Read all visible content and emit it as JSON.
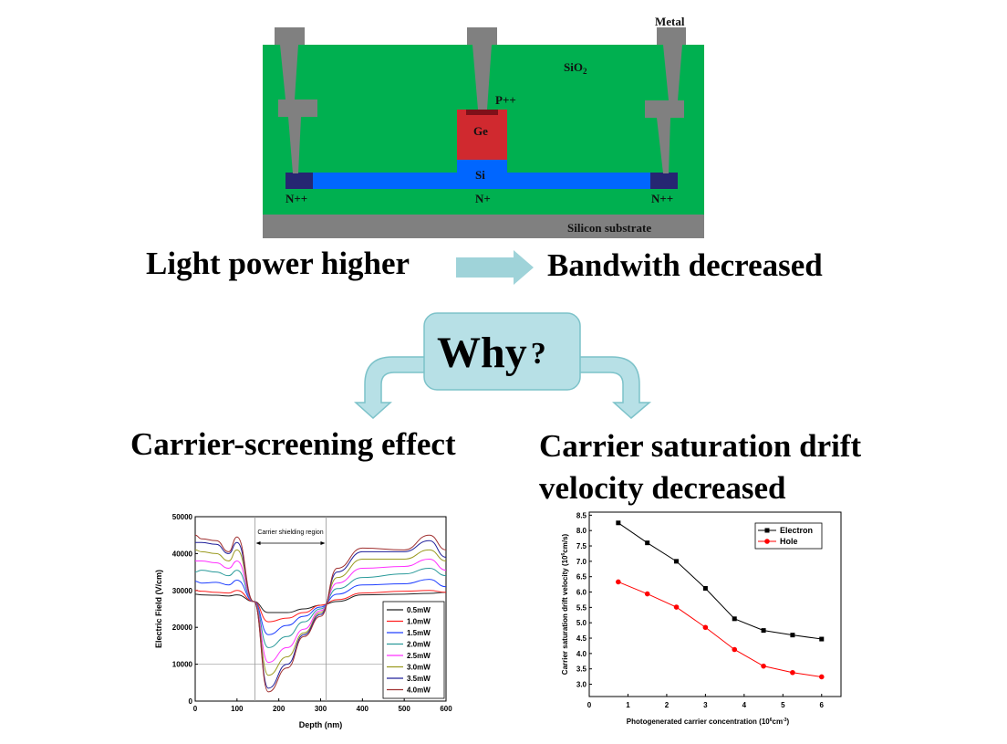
{
  "device": {
    "metal_label": "Metal",
    "sio2_label": "SiO",
    "sio2_sub": "2",
    "p_label": "P++",
    "ge_label": "Ge",
    "si_label": "Si",
    "n_left_label": "N++",
    "n_center_label": "N+",
    "n_right_label": "N++",
    "substrate_label": "Silicon substrate",
    "colors": {
      "sio2": "#00b050",
      "substrate": "#808080",
      "metal": "#808080",
      "ge": "#d0292f",
      "p": "#7f1019",
      "si": "#0066ff",
      "nplus": "#262672"
    }
  },
  "flow": {
    "cause": "Light power higher",
    "effect": "Bandwith decreased",
    "question": "Why",
    "question_mark": "?",
    "left_reason": "Carrier-screening effect",
    "right_reason_line1": "Carrier saturation drift",
    "right_reason_line2": "velocity decreased",
    "arrow_color": "#b7e0e6"
  },
  "chart_data": [
    {
      "type": "line",
      "title": "",
      "xlabel": "Depth (nm)",
      "ylabel": "Electric Field (V/cm)",
      "xlim": [
        0,
        600
      ],
      "ylim": [
        0,
        50000
      ],
      "xticks": [
        "0",
        "100",
        "200",
        "300",
        "400",
        "500",
        "600"
      ],
      "yticks": [
        "0",
        "10000",
        "20000",
        "30000",
        "40000",
        "50000"
      ],
      "annotation": "Carrier shielding region",
      "annotation_range": [
        143,
        313
      ],
      "reference_line": 10000,
      "legend_position": "bottom-right",
      "x": [
        0,
        15,
        50,
        80,
        100,
        140,
        175,
        220,
        260,
        300,
        340,
        400,
        500,
        560,
        600
      ],
      "series": [
        {
          "name": "0.5mW",
          "color": "#222222",
          "values": [
            29000,
            28800,
            28700,
            28500,
            28800,
            27000,
            24000,
            24000,
            25000,
            26000,
            27000,
            28800,
            29000,
            29200,
            29500
          ]
        },
        {
          "name": "1.0mW",
          "color": "#ff2020",
          "values": [
            30000,
            29800,
            29500,
            29300,
            30000,
            27000,
            21500,
            22500,
            24000,
            26000,
            27500,
            29300,
            29800,
            30000,
            29500
          ]
        },
        {
          "name": "1.5mW",
          "color": "#2040ff",
          "values": [
            32500,
            32000,
            32200,
            31500,
            32800,
            27000,
            18000,
            20500,
            23000,
            25500,
            29000,
            31500,
            31800,
            33000,
            31000
          ]
        },
        {
          "name": "2.0mW",
          "color": "#2a9a9a",
          "values": [
            35000,
            35500,
            35000,
            34000,
            35500,
            27000,
            14500,
            17500,
            21500,
            25000,
            30500,
            33500,
            34500,
            36000,
            34000
          ]
        },
        {
          "name": "2.5mW",
          "color": "#ff30ff",
          "values": [
            38000,
            38000,
            37500,
            36000,
            38000,
            27000,
            10500,
            14500,
            19500,
            24500,
            32000,
            36000,
            36500,
            38500,
            35500
          ]
        },
        {
          "name": "3.0mW",
          "color": "#9a9a20",
          "values": [
            41000,
            40500,
            40000,
            38000,
            41000,
            27000,
            7000,
            12000,
            18500,
            24000,
            33500,
            38500,
            38500,
            41000,
            38000
          ]
        },
        {
          "name": "3.5mW",
          "color": "#20209a",
          "values": [
            43000,
            43000,
            42500,
            40000,
            43000,
            27000,
            3500,
            10000,
            18000,
            23500,
            35000,
            40500,
            40500,
            43500,
            39000
          ]
        },
        {
          "name": "4.0mW",
          "color": "#a03030",
          "values": [
            45000,
            44000,
            43500,
            40500,
            44500,
            27000,
            2500,
            9000,
            17500,
            23000,
            36000,
            41500,
            41000,
            45000,
            41000
          ]
        }
      ]
    },
    {
      "type": "line",
      "title": "",
      "xlabel": "Photogenerated carrier concentration (10",
      "xlabel_sup": "6",
      "xlabel_unit": "cm",
      "xlabel_unit_sup": "-3",
      "xlabel_end": ")",
      "ylabel": "Carrier saturation drift velocity (10",
      "ylabel_sup": "6",
      "ylabel_end": "cm/s)",
      "xlim": [
        0,
        6.5
      ],
      "ylim": [
        2.6,
        8.6
      ],
      "xticks": [
        "0",
        "1",
        "2",
        "3",
        "4",
        "5",
        "6"
      ],
      "yticks": [
        "3.0",
        "3.5",
        "4.0",
        "4.5",
        "5.0",
        "5.5",
        "6.0",
        "6.5",
        "7.0",
        "7.5",
        "8.0",
        "8.5"
      ],
      "legend_position": "top-right",
      "x": [
        0.75,
        1.5,
        2.25,
        3.0,
        3.75,
        4.5,
        5.25,
        6.0
      ],
      "series": [
        {
          "name": "Electron",
          "color": "#000000",
          "marker": "square",
          "values": [
            8.25,
            7.6,
            7.0,
            6.12,
            5.13,
            4.75,
            4.6,
            4.47
          ]
        },
        {
          "name": "Hole",
          "color": "#ff0000",
          "marker": "circle",
          "values": [
            6.33,
            5.94,
            5.51,
            4.85,
            4.13,
            3.59,
            3.38,
            3.24
          ]
        }
      ]
    }
  ]
}
